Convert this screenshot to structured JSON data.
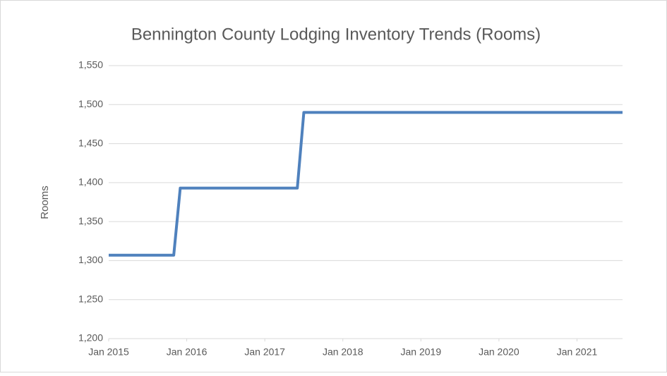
{
  "chart_data": {
    "type": "line",
    "title": "Bennington County Lodging Inventory Trends (Rooms)",
    "y_label": "Rooms",
    "x": [
      "2015-01",
      "2015-11",
      "2015-12",
      "2017-06",
      "2017-07",
      "2021-08"
    ],
    "series": [
      {
        "name": "Rooms",
        "color": "#4f81bd",
        "values": [
          1307,
          1307,
          1393,
          1393,
          1490,
          1490
        ]
      }
    ],
    "xlim": [
      "2015-01",
      "2021-08"
    ],
    "xticks": [
      {
        "value": "2015-01",
        "label": "Jan 2015"
      },
      {
        "value": "2016-01",
        "label": "Jan 2016"
      },
      {
        "value": "2017-01",
        "label": "Jan 2017"
      },
      {
        "value": "2018-01",
        "label": "Jan 2018"
      },
      {
        "value": "2019-01",
        "label": "Jan 2019"
      },
      {
        "value": "2020-01",
        "label": "Jan 2020"
      },
      {
        "value": "2021-01",
        "label": "Jan 2021"
      }
    ],
    "ylim": [
      1200,
      1550
    ],
    "yticks": [
      {
        "value": 1200,
        "label": "1,200"
      },
      {
        "value": 1250,
        "label": "1,250"
      },
      {
        "value": 1300,
        "label": "1,300"
      },
      {
        "value": 1350,
        "label": "1,350"
      },
      {
        "value": 1400,
        "label": "1,400"
      },
      {
        "value": 1450,
        "label": "1,450"
      },
      {
        "value": 1500,
        "label": "1,500"
      },
      {
        "value": 1550,
        "label": "1,550"
      }
    ],
    "grid": true
  }
}
